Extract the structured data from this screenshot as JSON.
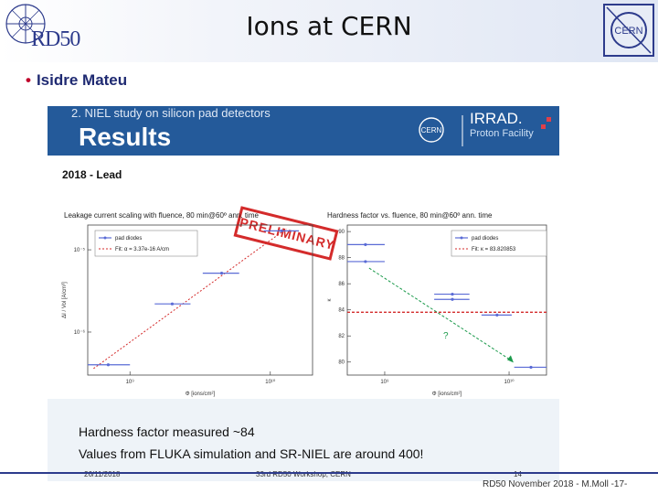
{
  "header": {
    "title": "Ions at CERN",
    "rd50_logo_text": "RD50",
    "cern_logo_text": "CERN"
  },
  "bullet": {
    "text": "Isidre Mateu"
  },
  "slide": {
    "subtitle": "2. NIEL study on silicon pad detectors",
    "heading": "Results",
    "irrad_title": "IRRAD.",
    "irrad_subtitle": "Proton Facility",
    "irrad_cern": "CERN",
    "section_label": "2018 - Lead",
    "stamp": "PRELIMINARY",
    "points": [
      "Hardness factor measured ~84",
      "Values from FLUKA simulation and SR-NIEL are around 400!"
    ],
    "footer_left": "26/11/2018",
    "footer_center": "33rd RD50 Workshop, CERN",
    "footer_page": "14"
  },
  "outer_footer": "RD50 November 2018 - M.Moll -17-",
  "colors": {
    "accent_blue": "#245a9a",
    "red": "#d42b2b",
    "series_blue": "#5a6bd6",
    "fit_green": "#1b9a4b"
  },
  "chart_data": [
    {
      "type": "scatter",
      "title": "Leakage current scaling with fluence, 80 min@60º ann. time",
      "xlabel": "Φ [ions/cm²]",
      "ylabel": "ΔI / Vol [A/cm³]",
      "xscale": "log",
      "yscale": "log",
      "xlim": [
        500000000.0,
        20000000000.0
      ],
      "ylim": [
        3e-07,
        2e-05
      ],
      "xticks": [
        "10⁹",
        "10¹⁰"
      ],
      "yticks": [
        "10⁻⁶",
        "10⁻⁵"
      ],
      "legend_position": "top-left",
      "series": [
        {
          "name": "pad diodes",
          "x": [
            700000000.0,
            2000000000.0,
            4500000000.0,
            12000000000.0
          ],
          "xerr_low": [
            500000000.0,
            1500000000.0,
            3300000000.0,
            9000000000.0
          ],
          "xerr_high": [
            1000000000.0,
            2700000000.0,
            6000000000.0,
            16000000000.0
          ],
          "y": [
            4e-07,
            2.2e-06,
            5.2e-06,
            1.7e-05
          ]
        },
        {
          "name": "Fit: α = 3.37e-16 A/cm",
          "fit": "linear",
          "x": [
            550000000.0,
            13000000000.0
          ],
          "y": [
            3.6e-07,
            1.8e-05
          ]
        }
      ]
    },
    {
      "type": "scatter",
      "title": "Hardness factor vs. fluence, 80 min@60º ann. time",
      "xlabel": "Φ [ions/cm²]",
      "ylabel": "κ",
      "xscale": "log",
      "xlim": [
        500000000.0,
        20000000000.0
      ],
      "ylim": [
        79,
        90.5
      ],
      "xticks": [
        "10⁹",
        "10¹⁰"
      ],
      "yticks": [
        80,
        82,
        84,
        86,
        88,
        90
      ],
      "legend_position": "top-right",
      "annotations": [
        "?"
      ],
      "series": [
        {
          "name": "pad diodes",
          "x": [
            700000000.0,
            700000000.0,
            3500000000.0,
            3500000000.0,
            8000000000.0,
            15000000000.0
          ],
          "xerr_low": [
            500000000.0,
            500000000.0,
            2500000000.0,
            2500000000.0,
            6000000000.0,
            11000000000.0
          ],
          "xerr_high": [
            1000000000.0,
            1000000000.0,
            4800000000.0,
            4800000000.0,
            10500000000.0,
            20000000000.0
          ],
          "y": [
            89,
            87.7,
            85.2,
            84.8,
            83.6,
            79.6
          ]
        },
        {
          "name": "Fit: κ = 83.820853",
          "value": 83.82
        }
      ]
    }
  ]
}
